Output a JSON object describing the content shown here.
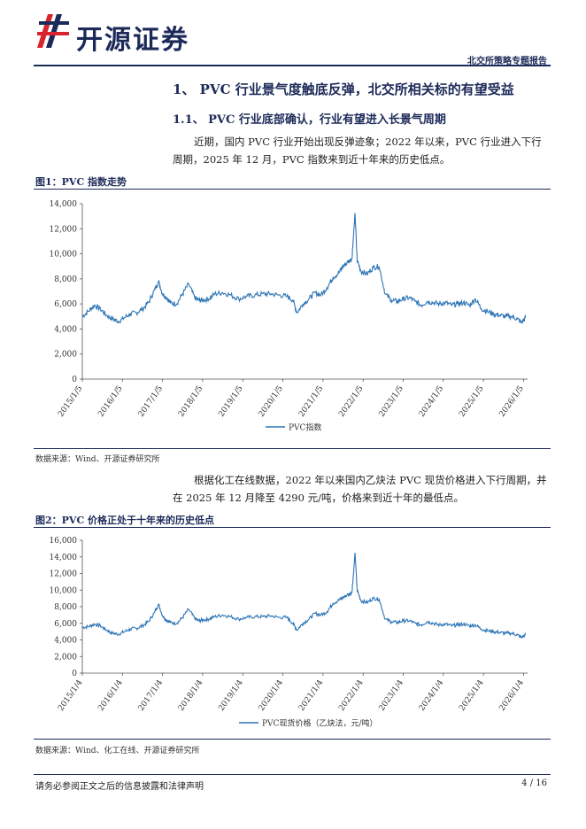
{
  "header": {
    "brand": "开源证券",
    "report_type": "北交所策略专题报告"
  },
  "section": {
    "h1": "1、 PVC 行业景气度触底反弹，北交所相关标的有望受益",
    "h2": "1.1、 PVC 行业底部确认，行业有望进入长景气周期",
    "para1": "近期，国内 PVC 行业开始出现反弹迹象；2022 年以来，PVC 行业进入下行周期，2025 年 12 月，PVC 指数来到近十年来的历史低点。",
    "para2": "根据化工在线数据，2022 年以来国内乙炔法 PVC 现货价格进入下行周期，并在 2025 年 12 月降至 4290 元/吨，价格来到近十年的最低点。"
  },
  "figure1": {
    "title": "图1：PVC 指数走势",
    "source": "数据来源：Wind、开源证券研究所"
  },
  "figure2": {
    "title": "图2：PVC 价格正处于十年来的历史低点",
    "source": "数据来源：Wind、化工在线、开源证券研究所"
  },
  "footer": {
    "disclaimer": "请务必参阅正文之后的信息披露和法律声明",
    "page": "4 / 16"
  },
  "colors": {
    "line": "#2e75b6",
    "brand": "#1c2a59",
    "logo_red": "#d9232d"
  },
  "chart_data": [
    {
      "type": "line",
      "title": "",
      "xlabel": "",
      "ylabel": "",
      "ylim": [
        0,
        14000
      ],
      "yticks": [
        0,
        2000,
        4000,
        6000,
        8000,
        10000,
        12000,
        14000
      ],
      "ytick_labels": [
        "0",
        "2,000",
        "4,000",
        "6,000",
        "8,000",
        "10,000",
        "12,000",
        "14,000"
      ],
      "xlim": [
        2015.0,
        2026.1
      ],
      "xticks": [
        2015.0,
        2016.0,
        2017.0,
        2018.0,
        2019.0,
        2020.0,
        2021.0,
        2022.0,
        2023.0,
        2024.0,
        2025.0,
        2026.0
      ],
      "xtick_labels": [
        "2015/1/5",
        "2016/1/5",
        "2017/1/5",
        "2018/1/5",
        "2019/1/5",
        "2020/1/5",
        "2021/1/5",
        "2022/1/5",
        "2023/1/5",
        "2024/1/5",
        "2025/1/5",
        "2026/1/5"
      ],
      "grid": false,
      "legend": "bottom-center",
      "series": [
        {
          "name": "PVC指数",
          "x": [
            2015.0,
            2015.15,
            2015.3,
            2015.45,
            2015.6,
            2015.75,
            2015.9,
            2016.05,
            2016.2,
            2016.35,
            2016.5,
            2016.65,
            2016.8,
            2016.9,
            2017.0,
            2017.1,
            2017.2,
            2017.35,
            2017.5,
            2017.65,
            2017.8,
            2017.9,
            2018.0,
            2018.15,
            2018.3,
            2018.5,
            2018.7,
            2018.9,
            2019.1,
            2019.3,
            2019.5,
            2019.7,
            2019.9,
            2020.1,
            2020.25,
            2020.35,
            2020.5,
            2020.65,
            2020.8,
            2020.95,
            2021.1,
            2021.25,
            2021.4,
            2021.5,
            2021.6,
            2021.72,
            2021.76,
            2021.8,
            2021.85,
            2021.95,
            2022.1,
            2022.25,
            2022.4,
            2022.55,
            2022.7,
            2022.85,
            2023.0,
            2023.15,
            2023.3,
            2023.45,
            2023.6,
            2023.75,
            2023.9,
            2024.05,
            2024.2,
            2024.35,
            2024.5,
            2024.65,
            2024.8,
            2024.95,
            2025.1,
            2025.25,
            2025.4,
            2025.55,
            2025.7,
            2025.85,
            2025.95,
            2026.05
          ],
          "y": [
            5000,
            5400,
            5900,
            5600,
            5100,
            4800,
            4600,
            4900,
            5200,
            5300,
            5600,
            6100,
            7100,
            7800,
            6800,
            6500,
            6100,
            6000,
            6800,
            7600,
            6500,
            6300,
            6300,
            6400,
            6800,
            6900,
            6700,
            6400,
            6600,
            6700,
            6800,
            6800,
            6700,
            6600,
            6300,
            5300,
            6000,
            6400,
            6900,
            6700,
            7300,
            8100,
            8500,
            9000,
            9300,
            9600,
            11500,
            13200,
            9500,
            8600,
            8400,
            8900,
            9000,
            6800,
            6300,
            6200,
            6400,
            6500,
            6200,
            5900,
            6200,
            6100,
            6000,
            6100,
            5900,
            6000,
            6100,
            5900,
            6400,
            5600,
            5400,
            5200,
            5100,
            5000,
            5000,
            4800,
            4500,
            4900
          ]
        }
      ]
    },
    {
      "type": "line",
      "title": "",
      "xlabel": "",
      "ylabel": "",
      "ylim": [
        0,
        16000
      ],
      "yticks": [
        0,
        2000,
        4000,
        6000,
        8000,
        10000,
        12000,
        14000,
        16000
      ],
      "ytick_labels": [
        "0",
        "2,000",
        "4,000",
        "6,000",
        "8,000",
        "10,000",
        "12,000",
        "14,000",
        "16,000"
      ],
      "xlim": [
        2015.0,
        2026.1
      ],
      "xticks": [
        2015.0,
        2016.0,
        2017.0,
        2018.0,
        2019.0,
        2020.0,
        2021.0,
        2022.0,
        2023.0,
        2024.0,
        2025.0,
        2026.0
      ],
      "xtick_labels": [
        "2015/1/4",
        "2016/1/4",
        "2017/1/4",
        "2018/1/4",
        "2019/1/4",
        "2020/1/4",
        "2021/1/4",
        "2022/1/4",
        "2023/1/4",
        "2024/1/4",
        "2025/1/4",
        "2026/1/4"
      ],
      "grid": false,
      "legend": "bottom-center",
      "series": [
        {
          "name": "PVC现货价格（乙炔法，元/吨）",
          "x": [
            2015.0,
            2015.15,
            2015.3,
            2015.45,
            2015.6,
            2015.75,
            2015.9,
            2016.05,
            2016.2,
            2016.35,
            2016.5,
            2016.65,
            2016.8,
            2016.9,
            2017.0,
            2017.1,
            2017.2,
            2017.35,
            2017.5,
            2017.65,
            2017.8,
            2017.9,
            2018.0,
            2018.15,
            2018.3,
            2018.5,
            2018.7,
            2018.9,
            2019.1,
            2019.3,
            2019.5,
            2019.7,
            2019.9,
            2020.1,
            2020.25,
            2020.35,
            2020.5,
            2020.65,
            2020.8,
            2020.95,
            2021.1,
            2021.25,
            2021.4,
            2021.5,
            2021.6,
            2021.72,
            2021.76,
            2021.8,
            2021.85,
            2021.95,
            2022.1,
            2022.25,
            2022.4,
            2022.55,
            2022.7,
            2022.85,
            2023.0,
            2023.15,
            2023.3,
            2023.45,
            2023.6,
            2023.75,
            2023.9,
            2024.05,
            2024.2,
            2024.35,
            2024.5,
            2024.65,
            2024.8,
            2024.95,
            2025.1,
            2025.25,
            2025.4,
            2025.55,
            2025.7,
            2025.85,
            2025.95,
            2026.05
          ],
          "y": [
            5500,
            5600,
            5900,
            5700,
            5200,
            4800,
            4700,
            5000,
            5300,
            5400,
            5700,
            6200,
            7300,
            8300,
            6900,
            6400,
            6100,
            6000,
            6700,
            7700,
            6600,
            6300,
            6400,
            6500,
            6800,
            7000,
            6800,
            6500,
            6700,
            6800,
            6800,
            6900,
            6700,
            6700,
            6000,
            5200,
            6000,
            6500,
            7200,
            7000,
            7400,
            8400,
            8800,
            9100,
            9400,
            9700,
            12000,
            14500,
            10000,
            8700,
            8500,
            9000,
            8900,
            6500,
            6200,
            6100,
            6300,
            6300,
            6000,
            5800,
            6200,
            6000,
            5800,
            5900,
            5700,
            5800,
            5900,
            5700,
            5800,
            5300,
            5100,
            5000,
            4900,
            4800,
            4800,
            4600,
            4290,
            4600
          ]
        }
      ]
    }
  ]
}
